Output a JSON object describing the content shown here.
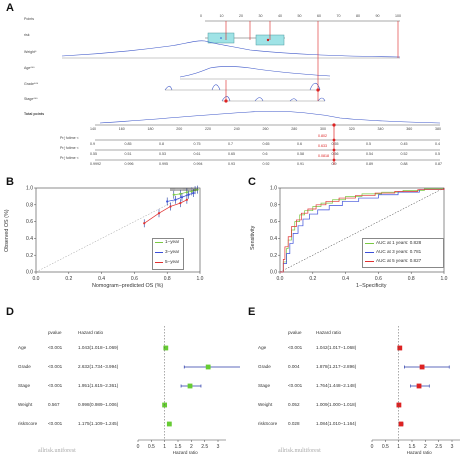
{
  "panels": {
    "a": "A",
    "b": "B",
    "c": "C",
    "d": "D",
    "e": "E"
  },
  "nomogram": {
    "rows": [
      {
        "label": "Points"
      },
      {
        "label": "risk"
      },
      {
        "label": "Weight*"
      },
      {
        "label": "Age***"
      },
      {
        "label": "Grade***"
      },
      {
        "label": "Stage***"
      },
      {
        "label": "Total points"
      },
      {
        "label": "Pr( futime <"
      },
      {
        "label": "Pr( futime <"
      },
      {
        "label": "Pr( futime <"
      }
    ],
    "points_ticks": [
      "0",
      "10",
      "20",
      "30",
      "40",
      "50",
      "60",
      "70",
      "80",
      "90",
      "100"
    ],
    "total_ticks": [
      "140",
      "160",
      "180",
      "200",
      "220",
      "240",
      "260",
      "280",
      "300",
      "320",
      "340",
      "360",
      "380"
    ],
    "pr1_ticks": [
      "0.9",
      "0.85",
      "0.8",
      "0.75",
      "0.7",
      "0.65",
      "0.6",
      "0.55",
      "0.5",
      "0.45",
      "0.4"
    ],
    "pr2_ticks": [
      "0.55",
      "0.51",
      "0.53",
      "0.61",
      "0.65",
      "0.6",
      "0.58",
      "0.56",
      "0.54",
      "0.52",
      "0.5"
    ],
    "pr3_ticks": [
      "0.9992",
      "0.996",
      "0.995",
      "0.994",
      "0.93",
      "0.92",
      "0.91",
      "0.9",
      "0.89",
      "0.88",
      "0.87"
    ],
    "red_values": [
      "0.802",
      "0.633",
      "0.0818"
    ]
  },
  "calibration": {
    "ylabel": "Observed OS (%)",
    "xlabel": "Nomogram−predicted OS (%)",
    "xticks": [
      "0.0",
      "0.2",
      "0.4",
      "0.6",
      "0.8",
      "1.0"
    ],
    "yticks": [
      "0.0",
      "0.2",
      "0.4",
      "0.6",
      "0.8",
      "1.0"
    ],
    "legend": [
      {
        "name": "1−year",
        "color": "#7ac943"
      },
      {
        "name": "3−year",
        "color": "#3b4fd9"
      },
      {
        "name": "5−year",
        "color": "#e03030"
      }
    ]
  },
  "chart_data": [
    {
      "type": "line",
      "panel": "B",
      "xlabel": "Nomogram−predicted OS (%)",
      "ylabel": "Observed OS (%)",
      "xlim": [
        0,
        1
      ],
      "ylim": [
        0,
        1
      ],
      "series": [
        {
          "name": "1−year",
          "x": [
            0.84,
            0.88,
            0.92,
            0.95,
            0.97,
            0.985
          ],
          "y": [
            0.92,
            0.93,
            0.95,
            0.96,
            0.975,
            0.98
          ],
          "color": "#7ac943"
        },
        {
          "name": "3−year",
          "x": [
            0.8,
            0.85,
            0.89,
            0.93,
            0.96
          ],
          "y": [
            0.84,
            0.86,
            0.89,
            0.92,
            0.94
          ],
          "color": "#3b4fd9"
        },
        {
          "name": "5−year",
          "x": [
            0.66,
            0.75,
            0.82,
            0.88,
            0.92
          ],
          "y": [
            0.58,
            0.7,
            0.78,
            0.82,
            0.86
          ],
          "color": "#e03030"
        }
      ]
    },
    {
      "type": "line",
      "panel": "C",
      "xlabel": "1−Specificity",
      "ylabel": "Sensitivity",
      "xlim": [
        0,
        1
      ],
      "ylim": [
        0,
        1
      ],
      "xticks": [
        "0.0",
        "0.2",
        "0.4",
        "0.6",
        "0.8",
        "1.0"
      ],
      "yticks": [
        "0.0",
        "0.2",
        "0.4",
        "0.6",
        "0.8",
        "1.0"
      ],
      "series": [
        {
          "name": "AUC at 1 years: 0.828",
          "color": "#7ac943",
          "x": [
            0,
            0.02,
            0.04,
            0.05,
            0.07,
            0.09,
            0.12,
            0.15,
            0.2,
            0.25,
            0.32,
            0.4,
            0.5,
            0.62,
            0.75,
            0.88,
            1
          ],
          "y": [
            0,
            0.12,
            0.28,
            0.38,
            0.5,
            0.6,
            0.68,
            0.73,
            0.78,
            0.82,
            0.86,
            0.9,
            0.93,
            0.95,
            0.97,
            0.99,
            1
          ]
        },
        {
          "name": "AUC at 3 years: 0.781",
          "color": "#3b4fd9",
          "x": [
            0,
            0.02,
            0.04,
            0.06,
            0.08,
            0.11,
            0.14,
            0.18,
            0.23,
            0.3,
            0.38,
            0.48,
            0.6,
            0.72,
            0.85,
            1
          ],
          "y": [
            0,
            0.1,
            0.22,
            0.34,
            0.46,
            0.55,
            0.63,
            0.69,
            0.74,
            0.79,
            0.84,
            0.88,
            0.92,
            0.95,
            0.98,
            1
          ]
        },
        {
          "name": "AUC at 5 years: 0.827",
          "color": "#e03030",
          "x": [
            0,
            0.02,
            0.03,
            0.05,
            0.07,
            0.1,
            0.13,
            0.17,
            0.22,
            0.28,
            0.36,
            0.46,
            0.58,
            0.7,
            0.84,
            1
          ],
          "y": [
            0,
            0.15,
            0.3,
            0.42,
            0.54,
            0.62,
            0.7,
            0.75,
            0.8,
            0.84,
            0.88,
            0.91,
            0.94,
            0.96,
            0.98,
            1
          ]
        }
      ]
    },
    {
      "type": "forest",
      "panel": "D",
      "headers": {
        "pvalue": "pvalue",
        "hr": "Hazard ratio"
      },
      "xlabel": "Hazard ratio",
      "xticks": [
        "0",
        "0.5",
        "1",
        "1.5",
        "2",
        "2.5",
        "3"
      ],
      "xlim": [
        0,
        3.3
      ],
      "color": "#66cc33",
      "watermark": "allrisk.uniforest",
      "rows": [
        {
          "name": "Age",
          "pvalue": "<0.001",
          "hr_text": "1.043(1.018−1.069)",
          "hr": 1.043,
          "lo": 1.018,
          "hi": 1.069
        },
        {
          "name": "Grade",
          "pvalue": "<0.001",
          "hr_text": "2.632(1.734−3.994)",
          "hr": 2.632,
          "lo": 1.734,
          "hi": 3.994
        },
        {
          "name": "Stage",
          "pvalue": "<0.001",
          "hr_text": "1.951(1.615−2.361)",
          "hr": 1.951,
          "lo": 1.615,
          "hi": 2.361
        },
        {
          "name": "Weight",
          "pvalue": "0.567",
          "hr_text": "0.998(0.989−1.006)",
          "hr": 0.998,
          "lo": 0.989,
          "hi": 1.006
        },
        {
          "name": "riskScore",
          "pvalue": "<0.001",
          "hr_text": "1.175(1.109−1.245)",
          "hr": 1.175,
          "lo": 1.109,
          "hi": 1.245
        }
      ]
    },
    {
      "type": "forest",
      "panel": "E",
      "headers": {
        "pvalue": "pvalue",
        "hr": "Hazard ratio"
      },
      "xlabel": "Hazard ratio",
      "xticks": [
        "0",
        "0.5",
        "1",
        "1.5",
        "2",
        "2.5",
        "3"
      ],
      "xlim": [
        0,
        3.3
      ],
      "color": "#dd2222",
      "watermark": "allrisk.multiforest",
      "rows": [
        {
          "name": "Age",
          "pvalue": "<0.001",
          "hr_text": "1.042(1.017−1.068)",
          "hr": 1.042,
          "lo": 1.017,
          "hi": 1.068
        },
        {
          "name": "Grade",
          "pvalue": "0.004",
          "hr_text": "1.878(1.217−2.896)",
          "hr": 1.878,
          "lo": 1.217,
          "hi": 2.896
        },
        {
          "name": "Stage",
          "pvalue": "<0.001",
          "hr_text": "1.764(1.448−2.148)",
          "hr": 1.764,
          "lo": 1.448,
          "hi": 2.148
        },
        {
          "name": "Weight",
          "pvalue": "0.052",
          "hr_text": "1.009(1.000−1.018)",
          "hr": 1.009,
          "lo": 1.0,
          "hi": 1.018
        },
        {
          "name": "riskScore",
          "pvalue": "0.028",
          "hr_text": "1.084(1.010−1.164)",
          "hr": 1.084,
          "lo": 1.01,
          "hi": 1.164
        }
      ]
    }
  ]
}
